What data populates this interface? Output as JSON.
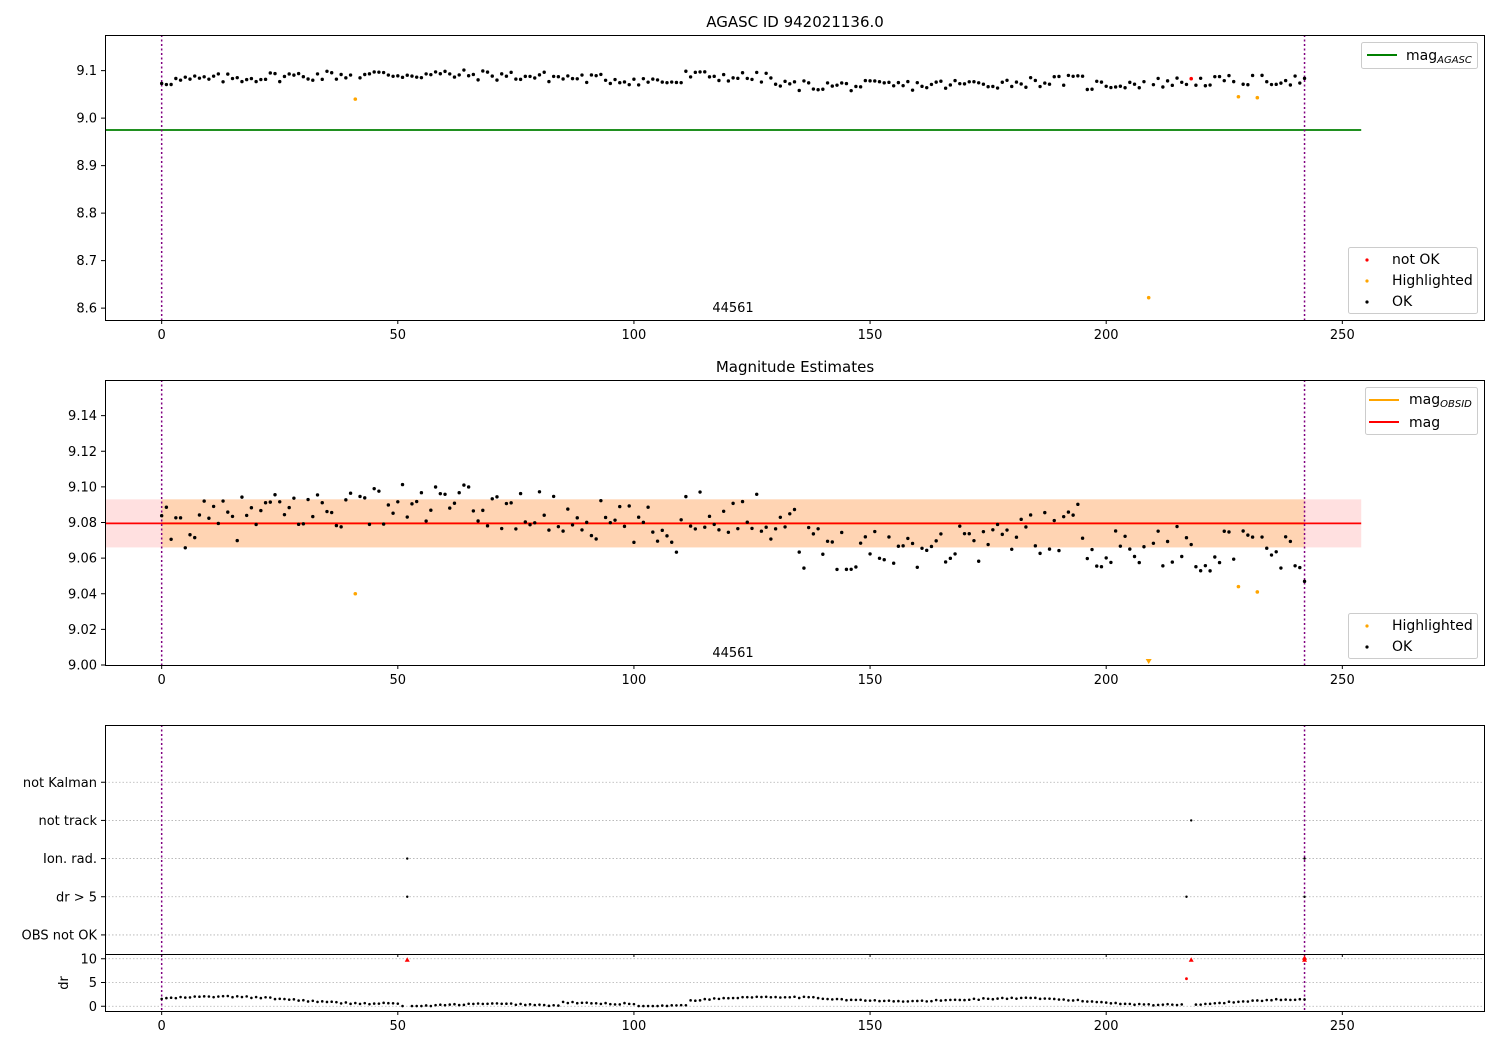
{
  "chart_data": [
    {
      "type": "scatter",
      "title": "AGASC ID 942021136.0",
      "xlim": [
        -12,
        280
      ],
      "ylim": [
        8.575,
        9.175
      ],
      "xticks": [
        0,
        50,
        100,
        150,
        200,
        250
      ],
      "yticks": [
        8.6,
        8.7,
        8.8,
        8.9,
        9.0,
        9.1
      ],
      "ytick_labels": [
        "8.6",
        "8.7",
        "8.8",
        "8.9",
        "9.0",
        "9.1"
      ],
      "annotation": "44561",
      "annotation_x": 120,
      "vlines": [
        0,
        242
      ],
      "hline": {
        "name": "mag_AGASC",
        "y": 8.975,
        "x_end": 254,
        "color": "#008000"
      },
      "series": [
        {
          "name": "not OK",
          "color": "#ff0000",
          "x": [
            218
          ],
          "y": [
            9.083
          ]
        },
        {
          "name": "Highlighted",
          "color": "#ffa500",
          "x": [
            41,
            209,
            228,
            232
          ],
          "y": [
            9.04,
            8.622,
            9.045,
            9.043
          ]
        },
        {
          "name": "OK",
          "color": "#000000",
          "trend": "mag1"
        }
      ],
      "legend_top": [
        "mag_AGASC"
      ],
      "legend_bottom": [
        "not OK",
        "Highlighted",
        "OK"
      ]
    },
    {
      "type": "scatter",
      "title": "Magnitude Estimates",
      "xlim": [
        -12,
        280
      ],
      "ylim": [
        9.0,
        9.16
      ],
      "xticks": [
        0,
        50,
        100,
        150,
        200,
        250
      ],
      "yticks": [
        9.0,
        9.02,
        9.04,
        9.06,
        9.08,
        9.1,
        9.12,
        9.14
      ],
      "ytick_labels": [
        "9.00",
        "9.02",
        "9.04",
        "9.06",
        "9.08",
        "9.10",
        "9.12",
        "9.14"
      ],
      "annotation": "44561",
      "annotation_x": 120,
      "vlines": [
        0,
        242
      ],
      "mag": 9.0795,
      "mag_obsid": 9.0795,
      "band_mag": [
        9.066,
        9.093
      ],
      "band_obsid": [
        9.066,
        9.093
      ],
      "band_x_end": 254,
      "series": [
        {
          "name": "Highlighted",
          "color": "#ffa500",
          "x": [
            41,
            209,
            228,
            232
          ],
          "y": [
            9.04,
            9.001,
            9.044,
            9.041
          ]
        },
        {
          "name": "OK",
          "color": "#000000",
          "trend": "mag2"
        }
      ],
      "legend_top": [
        "mag_OBSID",
        "mag"
      ],
      "legend_bottom": [
        "Highlighted",
        "OK"
      ]
    },
    {
      "type": "scatter",
      "title": "",
      "xlim": [
        -12,
        280
      ],
      "ylim": [
        -0.5,
        5.5
      ],
      "xticks": [
        0,
        50,
        100,
        150,
        200,
        250
      ],
      "categories": [
        "OBS not OK",
        "dr > 5",
        "Ion. rad.",
        "not track",
        "not Kalman"
      ],
      "vlines": [
        0,
        242
      ],
      "flag_points": [
        {
          "category": "dr > 5",
          "x": [
            52,
            217,
            242
          ]
        },
        {
          "category": "Ion. rad.",
          "x": [
            52,
            242
          ]
        },
        {
          "category": "not track",
          "x": [
            218
          ]
        }
      ]
    },
    {
      "type": "scatter",
      "title": "",
      "ylabel": "dr",
      "xlim": [
        -12,
        280
      ],
      "ylim": [
        -1,
        11
      ],
      "xticks": [
        0,
        50,
        100,
        150,
        200,
        250
      ],
      "yticks": [
        0,
        5,
        10
      ],
      "vlines": [
        0,
        242
      ],
      "series": [
        {
          "name": "dr > 5",
          "color": "#ff0000",
          "x": [
            52,
            218,
            217,
            242,
            242
          ],
          "y": [
            9.8,
            9.8,
            5.8,
            9.8,
            10.2
          ]
        },
        {
          "name": "OK",
          "color": "#000000",
          "trend": "dr"
        }
      ]
    }
  ]
}
